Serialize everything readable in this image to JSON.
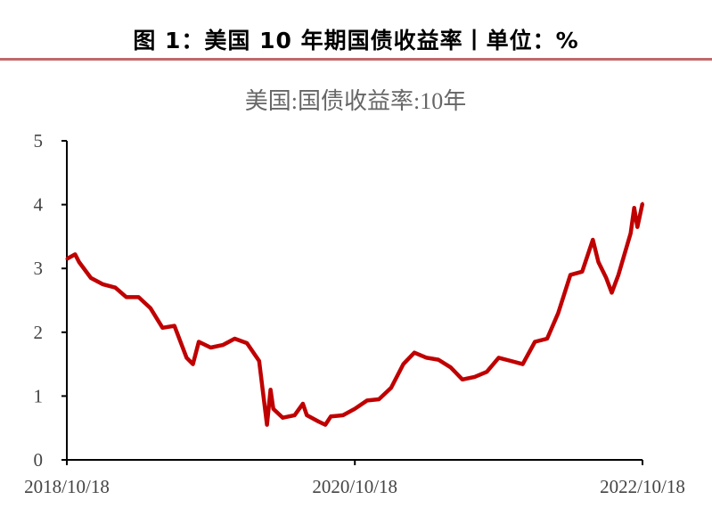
{
  "figure_title": "图 1：美国 10 年期国债收益率丨单位：%",
  "chart_data": {
    "type": "line",
    "title": "美国:国债收益率:10年",
    "xlabel": "",
    "ylabel": "",
    "ylim": [
      0,
      5
    ],
    "yticks": [
      "0",
      "1",
      "2",
      "3",
      "4",
      "5"
    ],
    "xlim": [
      "2018-10-18",
      "2022-10-18"
    ],
    "xticks": [
      "2018/10/18",
      "2020/10/18",
      "2022/10/18"
    ],
    "grid": false,
    "legend": "none",
    "color": "#c00000",
    "series": [
      {
        "x": [
          "2018-10-18",
          "2018-11-08",
          "2018-11-18",
          "2018-12-18",
          "2019-01-18",
          "2019-02-18",
          "2019-03-18",
          "2019-04-18",
          "2019-05-18",
          "2019-06-18",
          "2019-07-18",
          "2019-08-18",
          "2019-09-03",
          "2019-09-18",
          "2019-10-18",
          "2019-11-18",
          "2019-12-18",
          "2020-01-18",
          "2020-02-18",
          "2020-03-09",
          "2020-03-18",
          "2020-03-25",
          "2020-04-18",
          "2020-05-18",
          "2020-06-08",
          "2020-06-18",
          "2020-07-18",
          "2020-08-04",
          "2020-08-18",
          "2020-09-18",
          "2020-10-18",
          "2020-11-18",
          "2020-12-18",
          "2021-01-18",
          "2021-02-18",
          "2021-03-18",
          "2021-04-18",
          "2021-05-18",
          "2021-06-18",
          "2021-07-18",
          "2021-08-18",
          "2021-09-18",
          "2021-10-18",
          "2021-11-18",
          "2021-12-18",
          "2022-01-18",
          "2022-02-18",
          "2022-03-18",
          "2022-04-18",
          "2022-05-18",
          "2022-06-14",
          "2022-06-28",
          "2022-07-18",
          "2022-08-01",
          "2022-08-18",
          "2022-09-18",
          "2022-09-27",
          "2022-10-05",
          "2022-10-18"
        ],
        "y": [
          3.15,
          3.22,
          3.1,
          2.85,
          2.75,
          2.7,
          2.55,
          2.55,
          2.38,
          2.07,
          2.1,
          1.6,
          1.5,
          1.85,
          1.76,
          1.8,
          1.9,
          1.83,
          1.55,
          0.55,
          1.1,
          0.8,
          0.66,
          0.7,
          0.88,
          0.7,
          0.6,
          0.55,
          0.68,
          0.7,
          0.8,
          0.93,
          0.95,
          1.13,
          1.5,
          1.68,
          1.6,
          1.57,
          1.45,
          1.26,
          1.3,
          1.38,
          1.6,
          1.55,
          1.5,
          1.85,
          1.9,
          2.3,
          2.9,
          2.95,
          3.45,
          3.1,
          2.85,
          2.62,
          2.9,
          3.55,
          3.95,
          3.65,
          4.02
        ]
      }
    ]
  }
}
